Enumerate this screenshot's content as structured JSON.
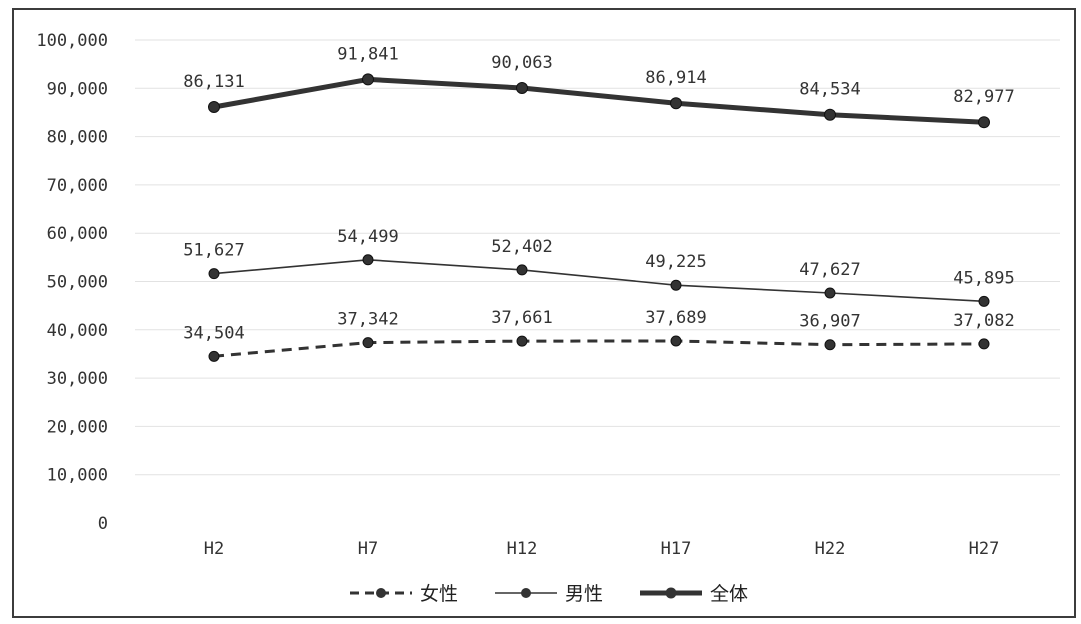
{
  "chart_data": {
    "type": "line",
    "categories": [
      "H2",
      "H7",
      "H12",
      "H17",
      "H22",
      "H27"
    ],
    "ylim": [
      0,
      100000
    ],
    "ytick_step": 10000,
    "ytick_labels": [
      "0",
      "10,000",
      "20,000",
      "30,000",
      "40,000",
      "50,000",
      "60,000",
      "70,000",
      "80,000",
      "90,000",
      "100,000"
    ],
    "grid": "horizontal",
    "legend_position": "bottom",
    "series": [
      {
        "name": "女性",
        "values": [
          34504,
          37342,
          37661,
          37689,
          36907,
          37082
        ],
        "labels": [
          "34,504",
          "37,342",
          "37,661",
          "37,689",
          "36,907",
          "37,082"
        ],
        "style": "dashed",
        "color": "#333333"
      },
      {
        "name": "男性",
        "values": [
          51627,
          54499,
          52402,
          49225,
          47627,
          45895
        ],
        "labels": [
          "51,627",
          "54,499",
          "52,402",
          "49,225",
          "47,627",
          "45,895"
        ],
        "style": "thin",
        "color": "#333333"
      },
      {
        "name": "全体",
        "values": [
          86131,
          91841,
          90063,
          86914,
          84534,
          82977
        ],
        "labels": [
          "86,131",
          "91,841",
          "90,063",
          "86,914",
          "84,534",
          "82,977"
        ],
        "style": "thick",
        "color": "#333333"
      }
    ]
  }
}
